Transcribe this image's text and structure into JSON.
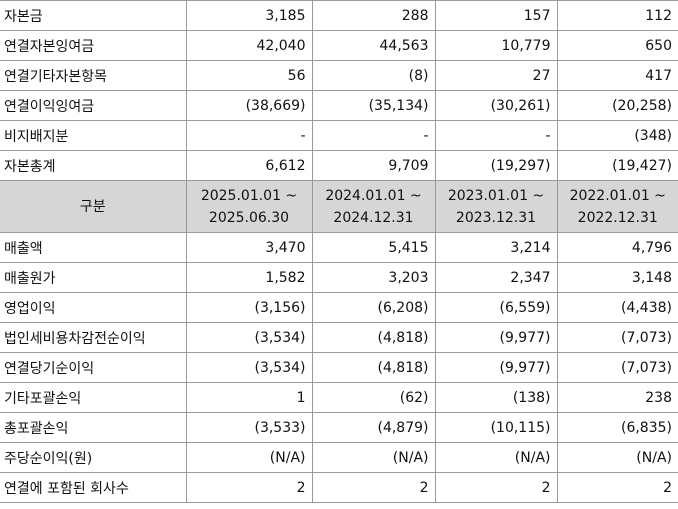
{
  "top_rows": [
    {
      "label": "자본금",
      "values": [
        "3,185",
        "288",
        "157",
        "112"
      ]
    },
    {
      "label": "연결자본잉여금",
      "values": [
        "42,040",
        "44,563",
        "10,779",
        "650"
      ]
    },
    {
      "label": "연결기타자본항목",
      "values": [
        "56",
        "(8)",
        "27",
        "417"
      ]
    },
    {
      "label": "연결이익잉여금",
      "values": [
        "(38,669)",
        "(35,134)",
        "(30,261)",
        "(20,258)"
      ]
    },
    {
      "label": "비지배지분",
      "values": [
        "-",
        "-",
        "-",
        "(348)"
      ]
    },
    {
      "label": "자본총계",
      "values": [
        "6,612",
        "9,709",
        "(19,297)",
        "(19,427)"
      ]
    }
  ],
  "header": {
    "label": "구분",
    "periods": [
      {
        "line1": "2025.01.01 ~",
        "line2": "2025.06.30"
      },
      {
        "line1": "2024.01.01 ~",
        "line2": "2024.12.31"
      },
      {
        "line1": "2023.01.01 ~",
        "line2": "2023.12.31"
      },
      {
        "line1": "2022.01.01 ~",
        "line2": "2022.12.31"
      }
    ]
  },
  "bottom_rows": [
    {
      "label": "매출액",
      "values": [
        "3,470",
        "5,415",
        "3,214",
        "4,796"
      ]
    },
    {
      "label": "매출원가",
      "values": [
        "1,582",
        "3,203",
        "2,347",
        "3,148"
      ]
    },
    {
      "label": "영업이익",
      "values": [
        "(3,156)",
        "(6,208)",
        "(6,559)",
        "(4,438)"
      ]
    },
    {
      "label": "법인세비용차감전순이익",
      "values": [
        "(3,534)",
        "(4,818)",
        "(9,977)",
        "(7,073)"
      ]
    },
    {
      "label": "연결당기순이익",
      "values": [
        "(3,534)",
        "(4,818)",
        "(9,977)",
        "(7,073)"
      ]
    },
    {
      "label": "기타포괄손익",
      "values": [
        "1",
        "(62)",
        "(138)",
        "238"
      ]
    },
    {
      "label": "총포괄손익",
      "values": [
        "(3,533)",
        "(4,879)",
        "(10,115)",
        "(6,835)"
      ]
    },
    {
      "label": "주당순이익(원)",
      "values": [
        "(N/A)",
        "(N/A)",
        "(N/A)",
        "(N/A)"
      ]
    },
    {
      "label": "연결에 포함된 회사수",
      "values": [
        "2",
        "2",
        "2",
        "2"
      ]
    }
  ]
}
